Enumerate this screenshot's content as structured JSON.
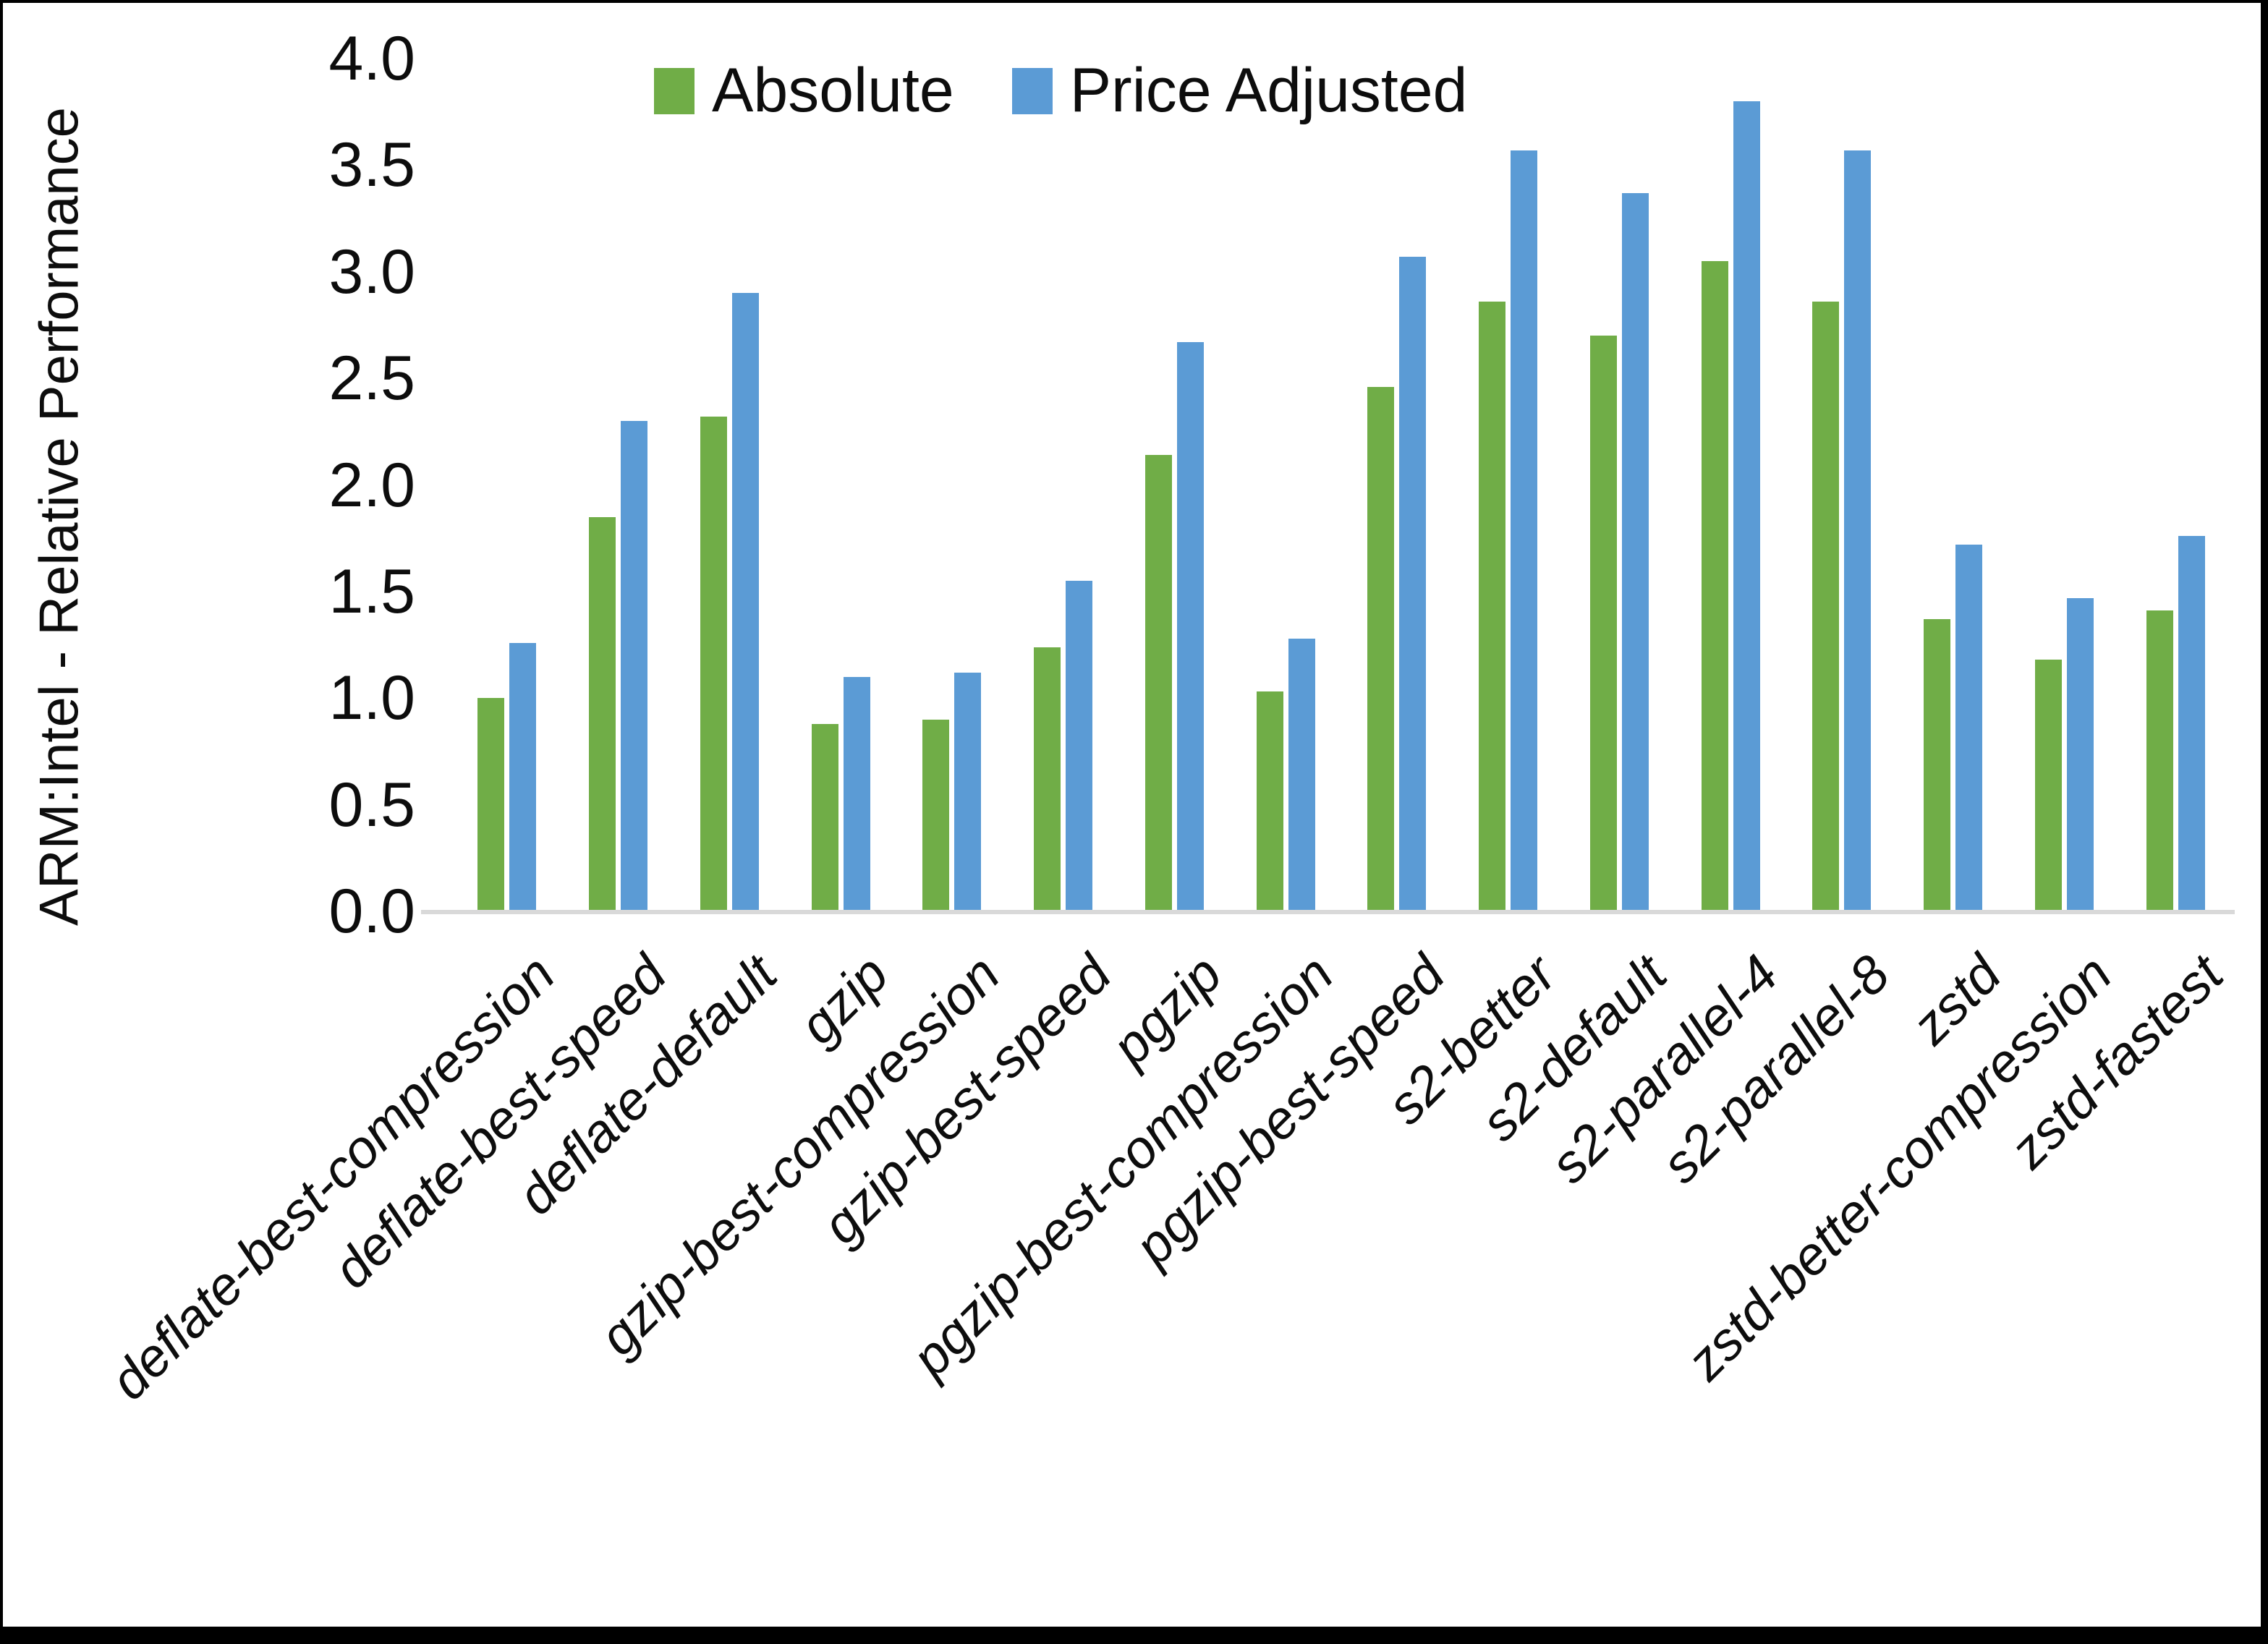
{
  "figure": {
    "y_axis_title": "ARM:Intel - Relative Performance"
  },
  "chart_data": {
    "type": "bar",
    "title": "",
    "xlabel": "",
    "ylabel": "ARM:Intel - Relative Performance",
    "ylim": [
      0.0,
      4.0
    ],
    "ytick_step": 0.5,
    "y_tick_labels": [
      "4.0",
      "3.5",
      "3.0",
      "2.5",
      "2.0",
      "1.5",
      "1.0",
      "0.5",
      "0.0"
    ],
    "grid": false,
    "legend_position": "top-center",
    "axis_line_color": "#d9d9d9",
    "categories": [
      "deflate-best-compression",
      "deflate-best-speed",
      "deflate-default",
      "gzip",
      "gzip-best-compression",
      "gzip-best-speed",
      "pgzip",
      "pgzip-best-compression",
      "pgzip-best-speed",
      "s2-better",
      "s2-default",
      "s2-parallel-4",
      "s2-parallel-8",
      "zstd",
      "zstd-better-compression",
      "zstd-fastest"
    ],
    "series": [
      {
        "name": "Absolute",
        "color": "#70AD47",
        "values": [
          1.0,
          1.85,
          2.32,
          0.88,
          0.9,
          1.24,
          2.14,
          1.03,
          2.46,
          2.86,
          2.7,
          3.05,
          2.86,
          1.37,
          1.18,
          1.41
        ]
      },
      {
        "name": "Price Adjusted",
        "color": "#5B9BD5",
        "values": [
          1.26,
          2.3,
          2.9,
          1.1,
          1.12,
          1.55,
          2.67,
          1.28,
          3.07,
          3.57,
          3.37,
          3.8,
          3.57,
          1.72,
          1.47,
          1.76
        ]
      }
    ]
  }
}
